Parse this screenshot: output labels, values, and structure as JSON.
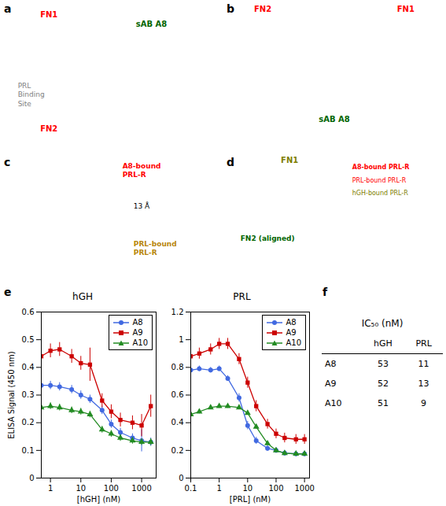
{
  "chart_data": [
    {
      "type": "text",
      "title": "a",
      "annotations": [
        {
          "text": "FN1",
          "color": "red"
        },
        {
          "text": "PRL\nBinding\nSite",
          "color": "gray"
        },
        {
          "text": "FN2",
          "color": "red"
        },
        {
          "text": "sAB A8",
          "color": "darkgreen"
        }
      ]
    },
    {
      "type": "text",
      "title": "b",
      "annotations": [
        {
          "text": "FN2",
          "color": "red"
        },
        {
          "text": "FN1",
          "color": "red"
        },
        {
          "text": "sAB A8",
          "color": "darkgreen"
        }
      ]
    },
    {
      "type": "text",
      "title": "c",
      "annotations": [
        {
          "text": "A8-bound\nPRL-R",
          "color": "red"
        },
        {
          "text": "PRL-bound\nPRL-R",
          "color": "#B8860B"
        },
        {
          "text": "13 Å",
          "color": "black"
        }
      ]
    },
    {
      "type": "text",
      "title": "d",
      "annotations": [
        {
          "text": "FN1",
          "color": "olive"
        },
        {
          "text": "A8-bound PRL-R",
          "color": "red"
        },
        {
          "text": "PRL-bound PRL-R",
          "color": "red"
        },
        {
          "text": "hGH-bound PRL-R",
          "color": "olive"
        },
        {
          "text": "FN2 (aligned)",
          "color": "darkgreen"
        }
      ]
    },
    {
      "type": "line",
      "title": "hGH",
      "annotations": [
        {
          "text": "e"
        }
      ],
      "xlabel": "[hGH] (nM)",
      "ylabel": "ELISA Signal (450 nm)",
      "log": "x",
      "xlim": [
        0.5,
        3000
      ],
      "xticks": [
        1,
        10,
        100,
        1000
      ],
      "ylim": [
        0,
        0.6
      ],
      "yticks": [
        0,
        0.1,
        0.2,
        0.3,
        0.4,
        0.5,
        0.6
      ],
      "grid": false,
      "legend": "upper right",
      "series": [
        {
          "name": "A8",
          "color": "#4169E1",
          "marker": "circle",
          "x": [
            0.5,
            1,
            2,
            5,
            10,
            20,
            50,
            100,
            200,
            500,
            1000,
            2000
          ],
          "values": [
            0.335,
            0.335,
            0.33,
            0.32,
            0.3,
            0.285,
            0.245,
            0.195,
            0.165,
            0.145,
            0.135,
            0.13
          ],
          "yerr": [
            0.015,
            0.015,
            0.015,
            0.015,
            0.015,
            0.015,
            0.015,
            0.015,
            0.015,
            0.015,
            0.04,
            0.015
          ]
        },
        {
          "name": "A9",
          "color": "#CC0000",
          "marker": "square",
          "x": [
            0.5,
            1,
            2,
            5,
            10,
            20,
            50,
            100,
            200,
            500,
            1000,
            2000
          ],
          "values": [
            0.44,
            0.46,
            0.465,
            0.44,
            0.415,
            0.41,
            0.28,
            0.24,
            0.21,
            0.2,
            0.19,
            0.26
          ],
          "yerr": [
            0.04,
            0.025,
            0.025,
            0.025,
            0.025,
            0.06,
            0.025,
            0.025,
            0.025,
            0.025,
            0.04,
            0.04
          ]
        },
        {
          "name": "A10",
          "color": "#228B22",
          "marker": "triangle",
          "x": [
            0.5,
            1,
            2,
            5,
            10,
            20,
            50,
            100,
            200,
            500,
            1000,
            2000
          ],
          "values": [
            0.255,
            0.26,
            0.255,
            0.245,
            0.24,
            0.23,
            0.175,
            0.16,
            0.145,
            0.135,
            0.13,
            0.13
          ],
          "yerr": [
            0.012,
            0.012,
            0.012,
            0.012,
            0.012,
            0.012,
            0.012,
            0.012,
            0.012,
            0.012,
            0.012,
            0.012
          ]
        }
      ]
    },
    {
      "type": "line",
      "title": "PRL",
      "xlabel": "[PRL] (nM)",
      "log": "x",
      "xlim": [
        0.1,
        1500
      ],
      "xticks": [
        0.1,
        1,
        10,
        100,
        1000
      ],
      "ylim": [
        0,
        1.2
      ],
      "yticks": [
        0,
        0.2,
        0.4,
        0.6,
        0.8,
        1,
        1.2
      ],
      "grid": false,
      "legend": "upper right",
      "series": [
        {
          "name": "A8",
          "color": "#4169E1",
          "marker": "circle",
          "x": [
            0.1,
            0.2,
            0.5,
            1,
            2,
            5,
            10,
            20,
            50,
            100,
            200,
            500,
            1000
          ],
          "values": [
            0.78,
            0.79,
            0.78,
            0.79,
            0.72,
            0.58,
            0.38,
            0.27,
            0.215,
            0.2,
            0.18,
            0.175,
            0.175
          ],
          "yerr": [
            0.02,
            0.02,
            0.02,
            0.02,
            0.02,
            0.03,
            0.03,
            0.025,
            0.02,
            0.02,
            0.02,
            0.02,
            0.02
          ]
        },
        {
          "name": "A9",
          "color": "#CC0000",
          "marker": "square",
          "x": [
            0.1,
            0.2,
            0.5,
            1,
            2,
            5,
            10,
            20,
            50,
            100,
            200,
            500,
            1000
          ],
          "values": [
            0.88,
            0.9,
            0.93,
            0.97,
            0.97,
            0.86,
            0.69,
            0.52,
            0.39,
            0.32,
            0.29,
            0.28,
            0.28
          ],
          "yerr": [
            0.035,
            0.04,
            0.04,
            0.04,
            0.04,
            0.04,
            0.04,
            0.04,
            0.035,
            0.035,
            0.035,
            0.035,
            0.035
          ]
        },
        {
          "name": "A10",
          "color": "#228B22",
          "marker": "triangle",
          "x": [
            0.1,
            0.2,
            0.5,
            1,
            2,
            5,
            10,
            20,
            50,
            100,
            200,
            500,
            1000
          ],
          "values": [
            0.46,
            0.48,
            0.51,
            0.52,
            0.52,
            0.51,
            0.47,
            0.37,
            0.25,
            0.2,
            0.18,
            0.175,
            0.175
          ],
          "yerr": [
            0.015,
            0.015,
            0.015,
            0.015,
            0.015,
            0.015,
            0.015,
            0.015,
            0.015,
            0.015,
            0.015,
            0.015,
            0.015
          ]
        }
      ]
    },
    {
      "type": "table",
      "title": "IC₅₀ (nM)",
      "annotations": [
        {
          "text": "f"
        }
      ],
      "categories": [
        "A8",
        "A9",
        "A10"
      ],
      "series": [
        {
          "name": "hGH",
          "values": [
            53,
            52,
            51
          ]
        },
        {
          "name": "PRL",
          "values": [
            11,
            13,
            9
          ]
        }
      ]
    }
  ]
}
